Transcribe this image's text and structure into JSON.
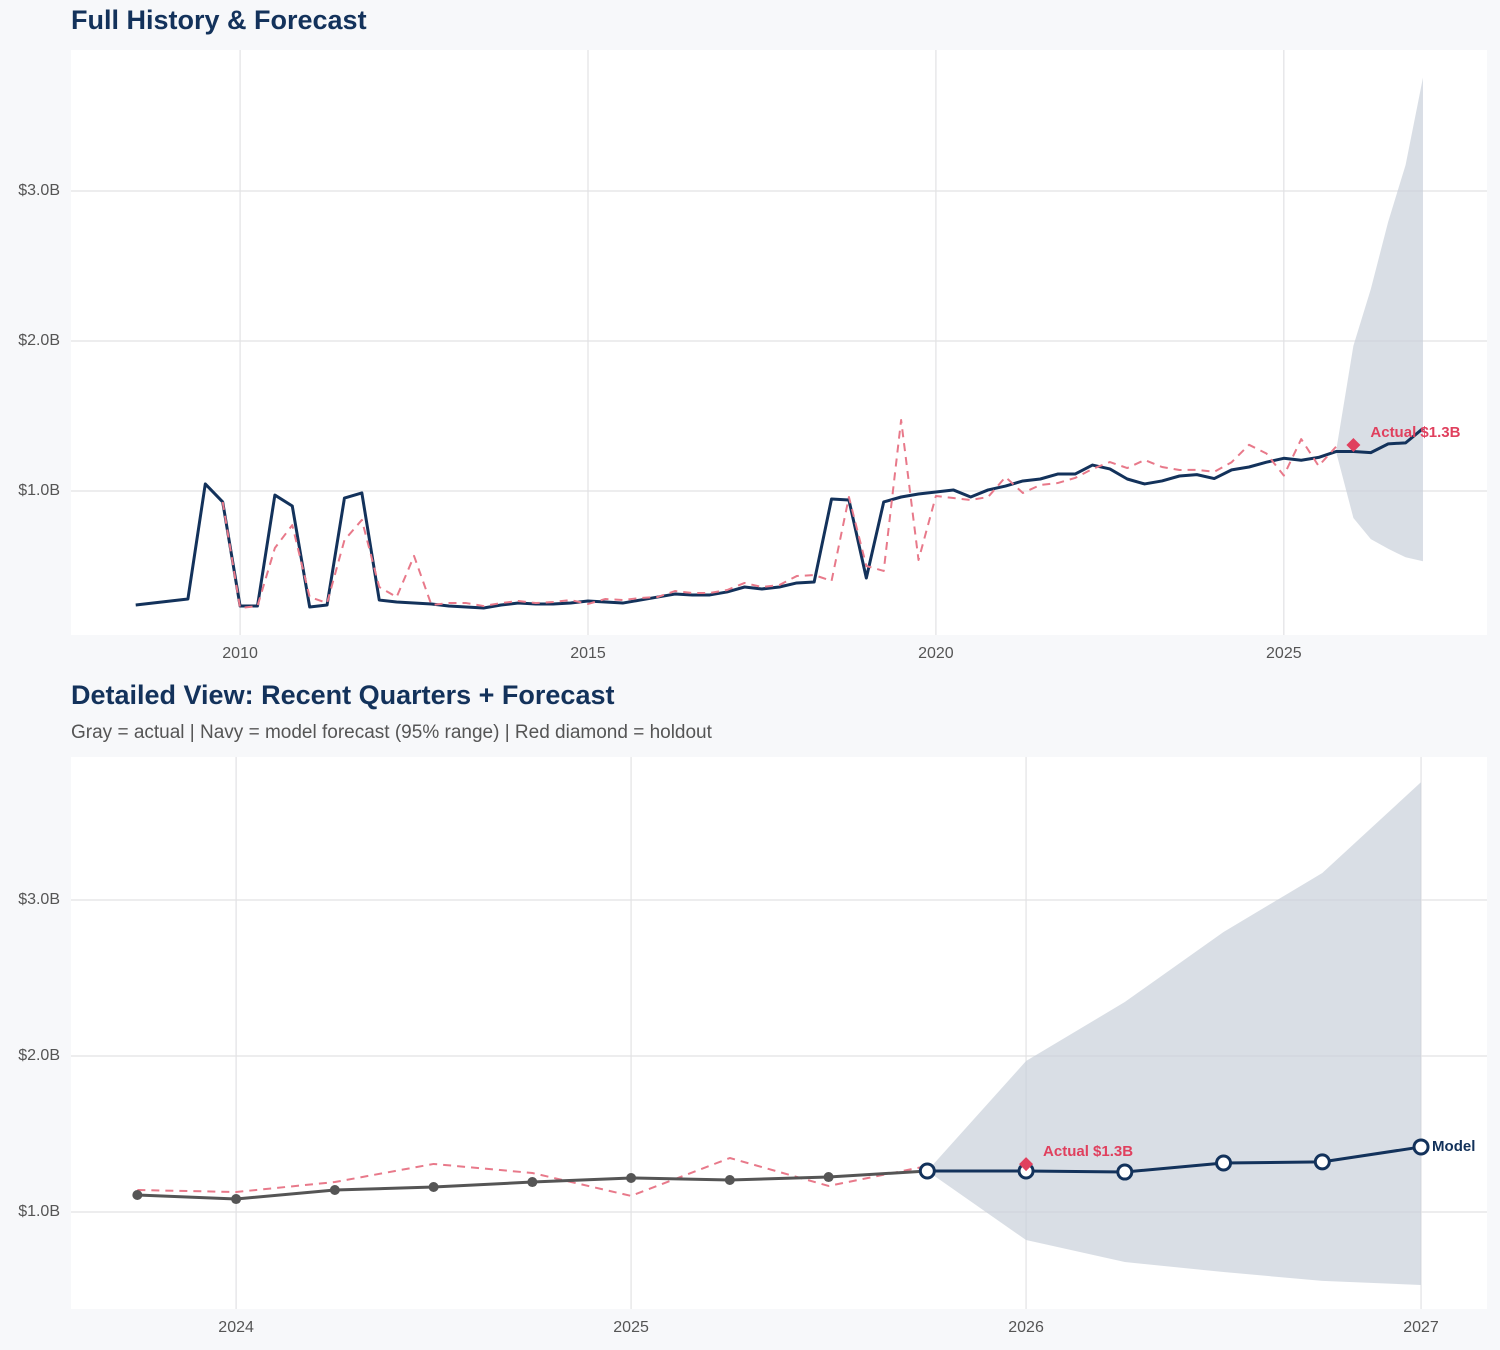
{
  "chart_data": [
    {
      "type": "line",
      "title": "Full History & Forecast",
      "xlim": [
        2007.57,
        2027.92
      ],
      "ylim": [
        0.04,
        3.94
      ],
      "xticks": [
        2010,
        2015,
        2020,
        2025
      ],
      "yticks": [
        {
          "value": 1,
          "label": "$1.0B"
        },
        {
          "value": 2,
          "label": "$2.0B"
        },
        {
          "value": 3,
          "label": "$3.0B"
        }
      ],
      "grid": true,
      "x": [
        2008.5,
        2008.75,
        2009,
        2009.25,
        2009.5,
        2009.75,
        2010,
        2010.25,
        2010.5,
        2010.75,
        2011,
        2011.25,
        2011.5,
        2011.75,
        2012,
        2012.25,
        2012.5,
        2012.75,
        2013,
        2013.25,
        2013.5,
        2013.75,
        2014,
        2014.25,
        2014.5,
        2014.75,
        2015,
        2015.25,
        2015.5,
        2015.75,
        2016,
        2016.25,
        2016.5,
        2016.75,
        2017,
        2017.25,
        2017.5,
        2017.75,
        2018,
        2018.25,
        2018.5,
        2018.75,
        2019,
        2019.25,
        2019.5,
        2019.75,
        2020,
        2020.25,
        2020.5,
        2020.75,
        2021,
        2021.25,
        2021.5,
        2021.75,
        2022,
        2022.25,
        2022.5,
        2022.75,
        2023,
        2023.25,
        2023.5,
        2023.75,
        2024,
        2024.25,
        2024.5,
        2024.75,
        2025,
        2025.25,
        2025.5,
        2025.75,
        2026,
        2026.25,
        2026.5,
        2026.75,
        2027
      ],
      "band": {
        "color": "#c9d0da",
        "x": [
          2025.75,
          2026,
          2026.25,
          2026.5,
          2026.75,
          2027
        ],
        "lower": [
          1.263,
          0.82,
          0.679,
          0.615,
          0.558,
          0.532
        ],
        "upper": [
          1.263,
          1.968,
          2.346,
          2.795,
          3.173,
          3.756
        ]
      },
      "series": [
        {
          "color": "#13325b",
          "style": "solid",
          "values": [
            0.24,
            0.253,
            0.267,
            0.28,
            1.047,
            0.927,
            0.233,
            0.233,
            0.973,
            0.9,
            0.227,
            0.24,
            0.953,
            0.987,
            0.273,
            0.26,
            0.253,
            0.247,
            0.233,
            0.227,
            0.22,
            0.24,
            0.253,
            0.247,
            0.247,
            0.253,
            0.267,
            0.26,
            0.253,
            0.273,
            0.293,
            0.313,
            0.307,
            0.307,
            0.327,
            0.36,
            0.347,
            0.36,
            0.387,
            0.393,
            0.947,
            0.94,
            0.42,
            0.927,
            0.96,
            0.98,
            0.993,
            1.007,
            0.96,
            1.007,
            1.033,
            1.067,
            1.08,
            1.113,
            1.113,
            1.173,
            1.147,
            1.08,
            1.047,
            1.067,
            1.1,
            1.109,
            1.083,
            1.141,
            1.16,
            1.192,
            1.218,
            1.205,
            1.224,
            1.263,
            1.263,
            1.256,
            1.314,
            1.321,
            1.417
          ]
        },
        {
          "color": "#e8798a",
          "style": "dashed",
          "values": [
            null,
            null,
            null,
            null,
            null,
            0.927,
            0.22,
            0.233,
            0.62,
            0.773,
            0.293,
            0.253,
            0.673,
            0.807,
            0.36,
            0.293,
            0.567,
            0.24,
            0.253,
            0.253,
            0.233,
            0.253,
            0.267,
            0.253,
            0.26,
            0.273,
            0.247,
            0.28,
            0.273,
            0.287,
            0.293,
            0.333,
            0.32,
            0.32,
            0.34,
            0.387,
            0.36,
            0.373,
            0.433,
            0.44,
            0.4,
            0.96,
            0.5,
            0.467,
            1.473,
            0.54,
            0.967,
            0.953,
            0.94,
            0.96,
            1.093,
            0.987,
            1.04,
            1.053,
            1.087,
            1.147,
            1.193,
            1.153,
            1.207,
            1.16,
            1.14,
            1.141,
            1.128,
            1.192,
            1.308,
            1.25,
            1.103,
            1.346,
            1.167,
            1.295,
            null,
            null,
            null,
            null,
            null
          ]
        }
      ],
      "holdout": {
        "x": 2026,
        "y": 1.307,
        "label": "Actual $1.3B",
        "color": "#e0405e"
      }
    },
    {
      "type": "line",
      "title": "Detailed View: Recent Quarters + Forecast",
      "subtitle": "Gray = actual  |  Navy = model forecast (95% range)  |  Red diamond = holdout",
      "xlim": [
        2023.582,
        2027.167
      ],
      "ylim": [
        0.378,
        3.917
      ],
      "xticks": [
        2024,
        2025,
        2026,
        2027
      ],
      "yticks": [
        {
          "value": 1,
          "label": "$1.0B"
        },
        {
          "value": 2,
          "label": "$2.0B"
        },
        {
          "value": 3,
          "label": "$3.0B"
        }
      ],
      "grid": true,
      "band": {
        "color": "#c9d0da",
        "x": [
          2025.75,
          2026,
          2026.25,
          2026.5,
          2026.75,
          2027
        ],
        "lower": [
          1.263,
          0.82,
          0.679,
          0.615,
          0.558,
          0.532
        ],
        "upper": [
          1.263,
          1.968,
          2.346,
          2.795,
          3.173,
          3.756
        ]
      },
      "series": [
        {
          "color": "#e8798a",
          "style": "dashed",
          "x": [
            2023.75,
            2024,
            2024.25,
            2024.5,
            2024.75,
            2025,
            2025.25,
            2025.5,
            2025.75
          ],
          "values": [
            1.141,
            1.128,
            1.192,
            1.308,
            1.25,
            1.103,
            1.346,
            1.167,
            1.295
          ]
        },
        {
          "color": "#555555",
          "style": "solid",
          "markers": "filled",
          "x": [
            2023.75,
            2024,
            2024.25,
            2024.5,
            2024.75,
            2025,
            2025.25,
            2025.5,
            2025.75
          ],
          "values": [
            1.109,
            1.083,
            1.141,
            1.16,
            1.192,
            1.218,
            1.205,
            1.224,
            1.263
          ]
        },
        {
          "color": "#13325b",
          "style": "solid",
          "markers": "open",
          "end_label": "Model",
          "x": [
            2025.75,
            2026,
            2026.25,
            2026.5,
            2026.75,
            2027
          ],
          "values": [
            1.263,
            1.263,
            1.256,
            1.314,
            1.321,
            1.417
          ]
        }
      ],
      "holdout": {
        "x": 2026,
        "y": 1.307,
        "label": "Actual $1.3B",
        "color": "#e0405e"
      }
    }
  ]
}
